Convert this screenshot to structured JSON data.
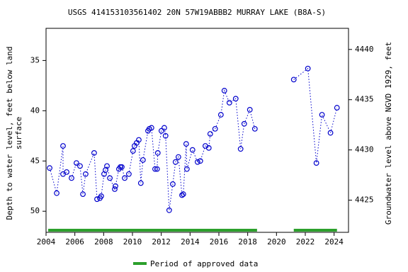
{
  "chart_data": {
    "type": "line",
    "title": "USGS 414153103561402 20N 57W19ABBB2 MURRAY LAKE (B8A-S)",
    "ylabel": [
      "Depth to water level, feet below land",
      "surface"
    ],
    "y2label": "Groundwater level above NGVD 1929, feet",
    "xlim": [
      2004,
      2025
    ],
    "xticks": [
      2004,
      2006,
      2008,
      2010,
      2012,
      2014,
      2016,
      2018,
      2020,
      2022,
      2024
    ],
    "ylim": [
      31.8,
      52.1
    ],
    "yticks": [
      35,
      40,
      45,
      50
    ],
    "y_inverted": true,
    "y2lim": [
      4421.8,
      4442.1
    ],
    "y2ticks": [
      4425,
      4430,
      4435,
      4440
    ],
    "series": [
      {
        "name": "Depth to water level",
        "color": "#0000cc",
        "x": [
          2004.25,
          2004.74,
          2005.18,
          2005.18,
          2005.43,
          2005.77,
          2006.11,
          2006.36,
          2006.56,
          2006.75,
          2007.34,
          2007.54,
          2007.74,
          2007.83,
          2008.03,
          2008.13,
          2008.23,
          2008.43,
          2008.77,
          2008.82,
          2009.06,
          2009.16,
          2009.26,
          2009.46,
          2009.75,
          2010.04,
          2010.14,
          2010.29,
          2010.44,
          2010.58,
          2010.73,
          2011.08,
          2011.17,
          2011.32,
          2011.57,
          2011.71,
          2011.76,
          2012.01,
          2012.21,
          2012.3,
          2012.55,
          2012.8,
          2012.99,
          2013.19,
          2013.44,
          2013.53,
          2013.73,
          2013.78,
          2014.17,
          2014.52,
          2014.71,
          2015.06,
          2015.3,
          2015.4,
          2015.74,
          2016.14,
          2016.38,
          2016.73,
          2017.17,
          2017.51,
          2017.76,
          2018.15,
          2018.5,
          2019.8,
          2021.2,
          2022.18,
          2022.77,
          2023.16,
          2023.75,
          2024.2
        ],
        "values": [
          45.7,
          48.2,
          43.5,
          46.3,
          46.1,
          46.7,
          45.2,
          45.5,
          48.3,
          46.3,
          44.2,
          48.8,
          48.7,
          48.5,
          46.3,
          45.9,
          45.5,
          46.7,
          47.8,
          47.5,
          45.8,
          45.6,
          45.6,
          46.7,
          46.3,
          44.0,
          43.5,
          43.2,
          42.9,
          47.2,
          44.9,
          42.0,
          41.8,
          41.7,
          45.8,
          45.8,
          44.2,
          42.0,
          41.7,
          42.5,
          49.9,
          47.3,
          45.1,
          44.6,
          48.4,
          48.3,
          43.3,
          45.8,
          43.9,
          45.1,
          45.0,
          43.5,
          43.7,
          42.3,
          41.8,
          40.4,
          38.0,
          39.2,
          38.8,
          43.8,
          41.3,
          39.9,
          41.8,
          null,
          36.9,
          35.8,
          45.2,
          40.4,
          42.2,
          39.7
        ]
      }
    ],
    "approved_periods": [
      [
        2004.15,
        2018.65
      ],
      [
        2021.2,
        2024.2
      ]
    ],
    "approved_color": "#2ca02c",
    "legend": "Period of approved data"
  }
}
